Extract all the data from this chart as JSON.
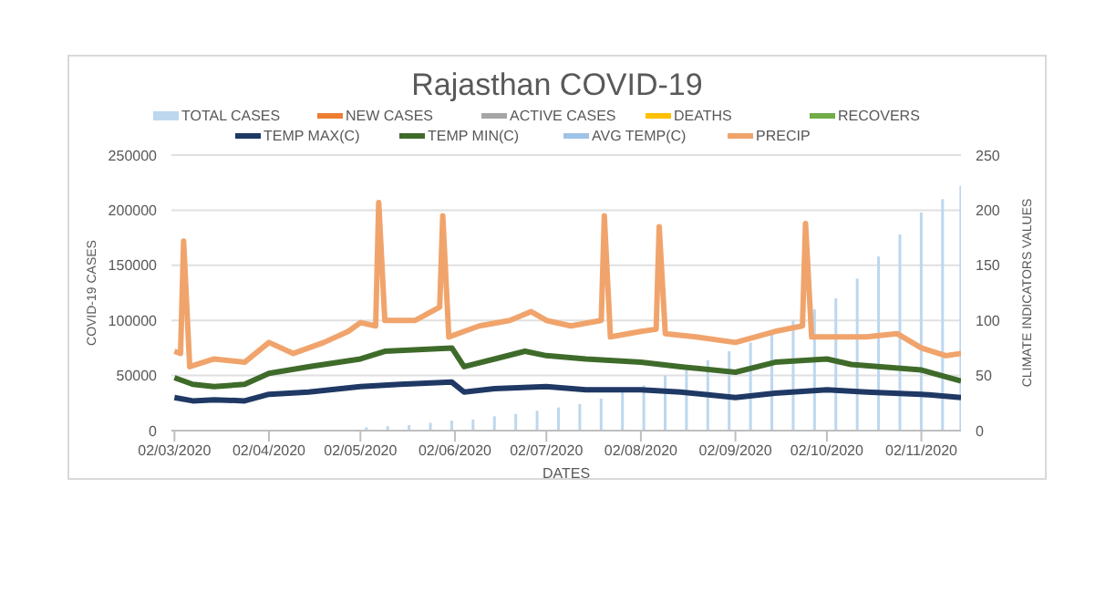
{
  "chart_data": {
    "type": "line",
    "title": "Rajasthan COVID-19",
    "xlabel": "DATES",
    "ylabel": "COVID-19 CASES",
    "y2label": "CLIMATE INDICATORS VALUES",
    "x": [
      "2020-03-02",
      "2020-03-09",
      "2020-03-16",
      "2020-03-23",
      "2020-03-30",
      "2020-04-06",
      "2020-04-13",
      "2020-04-20",
      "2020-04-27",
      "2020-05-04",
      "2020-05-11",
      "2020-05-18",
      "2020-05-25",
      "2020-06-01",
      "2020-06-08",
      "2020-06-15",
      "2020-06-22",
      "2020-06-29",
      "2020-07-06",
      "2020-07-13",
      "2020-07-20",
      "2020-07-27",
      "2020-08-03",
      "2020-08-10",
      "2020-08-17",
      "2020-08-24",
      "2020-08-31",
      "2020-09-07",
      "2020-09-14",
      "2020-09-21",
      "2020-09-28",
      "2020-10-05",
      "2020-10-12",
      "2020-10-19",
      "2020-10-26",
      "2020-11-02",
      "2020-11-09",
      "2020-11-15"
    ],
    "xlim": [
      "2020-03-01",
      "2020-11-15"
    ],
    "xticks": [
      {
        "value": "2020-03-02",
        "label": "02/03/2020"
      },
      {
        "value": "2020-04-02",
        "label": "02/04/2020"
      },
      {
        "value": "2020-05-02",
        "label": "02/05/2020"
      },
      {
        "value": "2020-06-02",
        "label": "02/06/2020"
      },
      {
        "value": "2020-07-02",
        "label": "02/07/2020"
      },
      {
        "value": "2020-08-02",
        "label": "02/08/2020"
      },
      {
        "value": "2020-09-02",
        "label": "02/09/2020"
      },
      {
        "value": "2020-10-02",
        "label": "02/10/2020"
      },
      {
        "value": "2020-11-02",
        "label": "02/11/2020"
      }
    ],
    "ylim": [
      0,
      250000
    ],
    "yticks": [
      0,
      50000,
      100000,
      150000,
      200000,
      250000
    ],
    "y2lim": [
      0,
      250
    ],
    "y2ticks": [
      0,
      50,
      100,
      150,
      200,
      250
    ],
    "grid": "y",
    "legend": "top",
    "series": [
      {
        "name": "TOTAL CASES",
        "type": "bar",
        "color": "#bdd7ee",
        "values": [
          0,
          0,
          0,
          0,
          0,
          0,
          null,
          null,
          null,
          3000,
          4000,
          5000,
          7000,
          9000,
          10000,
          13000,
          15000,
          18000,
          21000,
          24000,
          29000,
          35000,
          41000,
          50000,
          57000,
          64000,
          72000,
          80000,
          90000,
          100000,
          110000,
          120000,
          138000,
          158000,
          178000,
          198000,
          210000,
          222000
        ]
      },
      {
        "name": "NEW CASES",
        "color": "#ed7d31",
        "values": [
          null,
          null,
          null,
          null,
          null,
          null,
          null,
          null,
          null,
          null,
          null,
          null,
          null,
          null,
          null,
          null,
          null,
          null,
          null,
          null,
          null,
          null,
          null,
          null,
          null,
          null,
          null,
          null,
          null,
          null,
          null,
          null,
          null,
          null,
          null,
          null,
          null,
          null
        ]
      },
      {
        "name": "ACTIVE CASES",
        "color": "#a5a5a5",
        "values": [
          null,
          null,
          null,
          null,
          null,
          null,
          null,
          null,
          null,
          null,
          null,
          null,
          null,
          null,
          null,
          null,
          null,
          null,
          null,
          null,
          null,
          null,
          null,
          null,
          null,
          null,
          null,
          null,
          null,
          null,
          null,
          null,
          null,
          null,
          null,
          null,
          null,
          null
        ]
      },
      {
        "name": "DEATHS",
        "color": "#ffc000",
        "values": [
          null,
          null,
          null,
          null,
          null,
          null,
          null,
          null,
          null,
          null,
          null,
          null,
          null,
          null,
          null,
          null,
          null,
          null,
          null,
          null,
          null,
          null,
          null,
          null,
          null,
          null,
          null,
          null,
          null,
          null,
          null,
          null,
          null,
          null,
          null,
          null,
          null,
          null
        ]
      },
      {
        "name": "RECOVERS",
        "color": "#70ad47",
        "values": [
          null,
          null,
          null,
          null,
          null,
          null,
          null,
          null,
          null,
          null,
          null,
          null,
          null,
          null,
          null,
          null,
          null,
          null,
          null,
          null,
          null,
          null,
          null,
          null,
          null,
          null,
          null,
          null,
          null,
          null,
          null,
          null,
          null,
          null,
          null,
          null,
          null,
          null
        ]
      },
      {
        "name": "TEMP MAX(C)",
        "axis": "y2",
        "color": "#1f3864",
        "x": [
          "2020-03-02",
          "2020-03-08",
          "2020-03-15",
          "2020-03-25",
          "2020-04-02",
          "2020-04-15",
          "2020-05-02",
          "2020-05-15",
          "2020-06-01",
          "2020-06-05",
          "2020-06-15",
          "2020-07-02",
          "2020-07-15",
          "2020-08-02",
          "2020-08-15",
          "2020-09-02",
          "2020-09-15",
          "2020-10-02",
          "2020-10-15",
          "2020-11-02",
          "2020-11-15"
        ],
        "values": [
          30,
          27,
          28,
          27,
          33,
          35,
          40,
          42,
          44,
          35,
          38,
          40,
          37,
          37,
          35,
          30,
          34,
          37,
          35,
          33,
          30
        ]
      },
      {
        "name": "TEMP MIN(C)",
        "axis": "y2",
        "color": "#3f6b2a",
        "x": [
          "2020-03-02",
          "2020-03-08",
          "2020-03-15",
          "2020-03-25",
          "2020-04-02",
          "2020-04-15",
          "2020-05-02",
          "2020-05-10",
          "2020-06-01",
          "2020-06-05",
          "2020-06-15",
          "2020-06-25",
          "2020-07-02",
          "2020-07-15",
          "2020-08-02",
          "2020-08-15",
          "2020-09-02",
          "2020-09-15",
          "2020-10-02",
          "2020-10-10",
          "2020-11-02",
          "2020-11-15"
        ],
        "values": [
          48,
          42,
          40,
          42,
          52,
          58,
          65,
          72,
          75,
          58,
          65,
          72,
          68,
          65,
          62,
          58,
          53,
          62,
          65,
          60,
          55,
          45
        ]
      },
      {
        "name": "AVG TEMP(C)",
        "axis": "y2",
        "color": "#9dc3e6",
        "values": [
          null,
          null,
          null,
          null,
          null,
          null,
          null,
          null,
          null,
          null,
          null,
          null,
          null,
          null,
          null,
          null,
          null,
          null,
          null,
          null,
          null,
          null,
          null,
          null,
          null,
          null,
          null,
          null,
          null,
          null,
          null,
          null,
          null,
          null,
          null,
          null,
          null,
          null
        ]
      },
      {
        "name": "PRECIP",
        "axis": "y2",
        "color": "#f0a46c",
        "x": [
          "2020-03-02",
          "2020-03-04",
          "2020-03-05",
          "2020-03-07",
          "2020-03-15",
          "2020-03-25",
          "2020-04-02",
          "2020-04-10",
          "2020-04-20",
          "2020-04-28",
          "2020-05-02",
          "2020-05-07",
          "2020-05-08",
          "2020-05-10",
          "2020-05-20",
          "2020-05-28",
          "2020-05-29",
          "2020-05-31",
          "2020-06-10",
          "2020-06-20",
          "2020-06-27",
          "2020-07-02",
          "2020-07-10",
          "2020-07-20",
          "2020-07-21",
          "2020-07-23",
          "2020-08-02",
          "2020-08-07",
          "2020-08-08",
          "2020-08-10",
          "2020-08-20",
          "2020-09-02",
          "2020-09-15",
          "2020-09-24",
          "2020-09-25",
          "2020-09-27",
          "2020-10-15",
          "2020-10-25",
          "2020-11-02",
          "2020-11-10",
          "2020-11-15"
        ],
        "values": [
          72,
          70,
          172,
          58,
          65,
          62,
          80,
          70,
          80,
          90,
          98,
          95,
          207,
          100,
          100,
          112,
          195,
          85,
          95,
          100,
          108,
          100,
          95,
          100,
          195,
          85,
          90,
          92,
          185,
          88,
          85,
          80,
          90,
          95,
          188,
          85,
          85,
          88,
          75,
          68,
          70
        ]
      }
    ]
  }
}
